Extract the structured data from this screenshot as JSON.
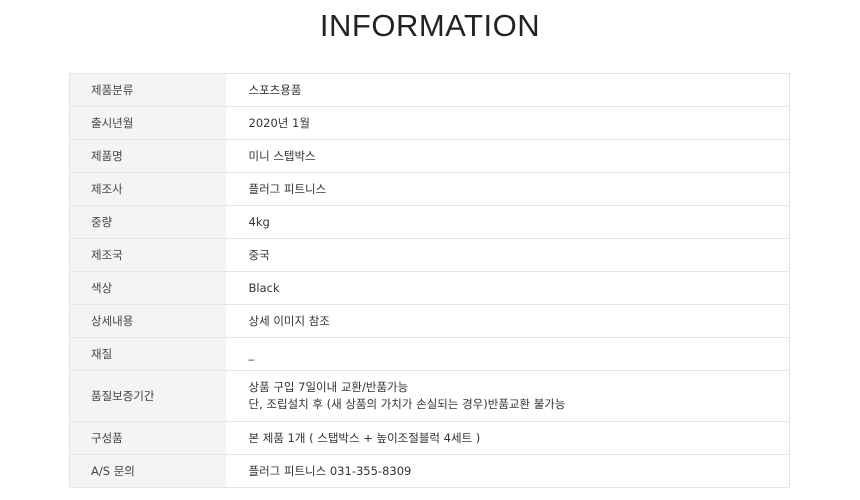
{
  "title": "INFORMATION",
  "rows": [
    {
      "label": "제품분류",
      "value": [
        "스포츠용품"
      ]
    },
    {
      "label": "출시년월",
      "value": [
        "2020년 1월"
      ]
    },
    {
      "label": "제품명",
      "value": [
        "미니 스텝박스"
      ]
    },
    {
      "label": "제조사",
      "value": [
        "플러그 피트니스"
      ]
    },
    {
      "label": "중량",
      "value": [
        "4kg"
      ]
    },
    {
      "label": "제조국",
      "value": [
        "중국"
      ]
    },
    {
      "label": "색상",
      "value": [
        "Black"
      ]
    },
    {
      "label": "상세내용",
      "value": [
        "상세 이미지 참조"
      ]
    },
    {
      "label": "재질",
      "value": [
        "_"
      ]
    },
    {
      "label": "품질보증기간",
      "value": [
        "상품 구입 7일이내 교환/반품가능",
        "단, 조립설치 후 (새 상품의 가치가 손실되는 경우)반품교환 불가능"
      ]
    },
    {
      "label": "구성품",
      "value": [
        "본 제품 1개 ( 스탭박스 + 높이조절블럭 4세트 )"
      ]
    },
    {
      "label": "A/S 문의",
      "value": [
        "플러그 피트니스 031-355-8309"
      ]
    }
  ]
}
